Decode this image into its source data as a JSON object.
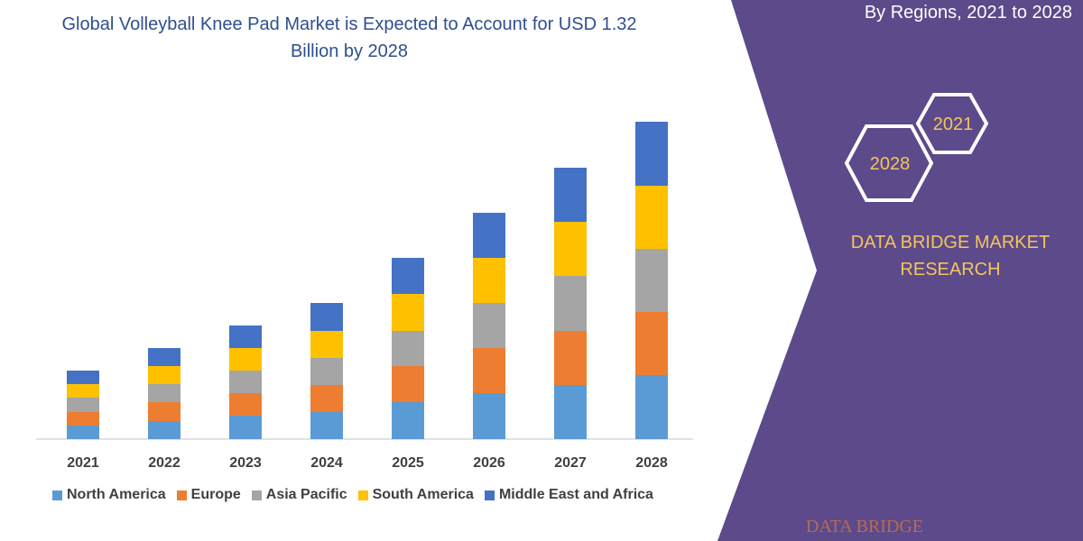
{
  "chart_data": {
    "type": "stacked_bar",
    "title": "Global Volleyball Knee Pad Market is Expected to Account for USD 1.32 Billion by 2028",
    "categories": [
      "2021",
      "2022",
      "2023",
      "2024",
      "2025",
      "2026",
      "2027",
      "2028"
    ],
    "series": [
      {
        "name": "North America",
        "color": "#5b9bd5",
        "values": [
          15,
          20,
          26,
          30,
          41,
          51,
          60,
          71
        ]
      },
      {
        "name": "Europe",
        "color": "#ed7d31",
        "values": [
          15,
          21,
          25,
          30,
          40,
          50,
          60,
          70
        ]
      },
      {
        "name": "Asia Pacific",
        "color": "#a5a5a5",
        "values": [
          16,
          20,
          25,
          30,
          39,
          50,
          61,
          70
        ]
      },
      {
        "name": "South America",
        "color": "#ffc000",
        "values": [
          15,
          20,
          25,
          30,
          41,
          50,
          60,
          70
        ]
      },
      {
        "name": "Middle East and Africa",
        "color": "#4472c4",
        "values": [
          15,
          20,
          25,
          31,
          40,
          50,
          60,
          71
        ]
      }
    ],
    "ylim": [
      0,
      360
    ]
  },
  "panel": {
    "subtitle": "By Regions, 2021 to 2028",
    "badges": [
      "2021",
      "2028"
    ],
    "brand": [
      "DATA BRIDGE MARKET",
      "RESEARCH"
    ],
    "logo": "DATA BRIDGE"
  }
}
